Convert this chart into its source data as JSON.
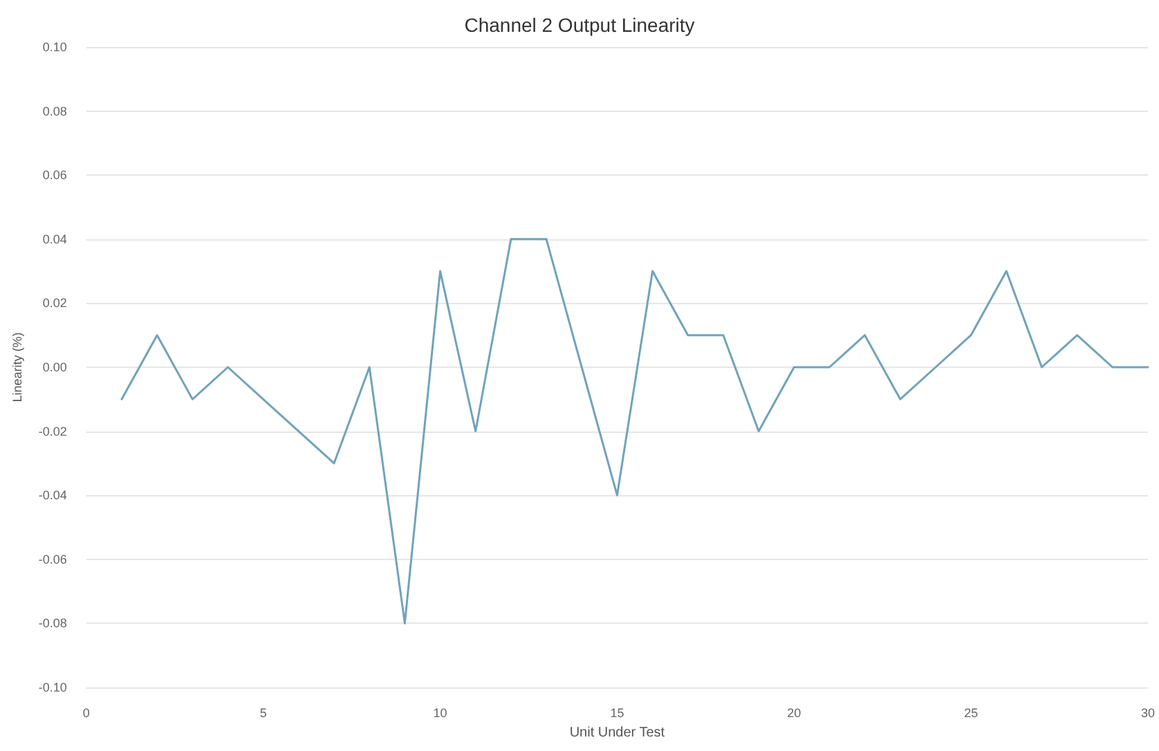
{
  "chart_data": {
    "type": "line",
    "title": "Channel 2 Output Linearity",
    "xlabel": "Unit Under Test",
    "ylabel": "Linearity (%)",
    "x": [
      1,
      2,
      3,
      4,
      5,
      6,
      7,
      8,
      9,
      10,
      11,
      12,
      13,
      14,
      15,
      16,
      17,
      18,
      19,
      20,
      21,
      22,
      23,
      24,
      25,
      26,
      27,
      28,
      29,
      30
    ],
    "series": [
      {
        "color": "#6fa3bd",
        "values": [
          -0.01,
          0.01,
          -0.01,
          0,
          -0.01,
          -0.02,
          -0.03,
          0,
          -0.08,
          0.03,
          -0.02,
          0.04,
          0.04,
          0,
          -0.04,
          0.03,
          0.01,
          0.01,
          -0.02,
          0,
          0,
          0.01,
          -0.01,
          0,
          0.01,
          0.03,
          0,
          0.01,
          0,
          0
        ]
      }
    ],
    "xlim": [
      0,
      30
    ],
    "xticks": [
      0,
      5,
      10,
      15,
      20,
      25,
      30
    ],
    "ylim": [
      -0.1,
      0.1
    ],
    "yticks": [
      {
        "value": -0.1,
        "label": "-0.10"
      },
      {
        "value": -0.08,
        "label": "-0.08"
      },
      {
        "value": -0.06,
        "label": "-0.06"
      },
      {
        "value": -0.04,
        "label": "-0.04"
      },
      {
        "value": -0.02,
        "label": "-0.02"
      },
      {
        "value": 0,
        "label": "0.00"
      },
      {
        "value": 0.02,
        "label": "0.02"
      },
      {
        "value": 0.04,
        "label": "0.04"
      },
      {
        "value": 0.06,
        "label": "0.06"
      },
      {
        "value": 0.08,
        "label": "0.08"
      },
      {
        "value": 0.1,
        "label": "0.10"
      }
    ],
    "grid": "y",
    "marker": "none",
    "line_style": "solid"
  }
}
